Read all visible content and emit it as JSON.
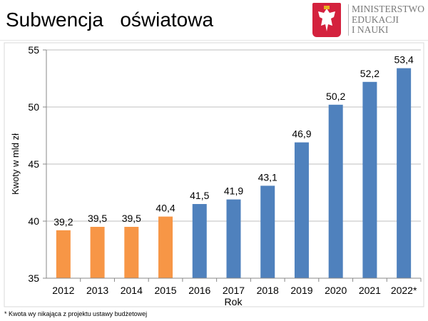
{
  "header": {
    "title": "Subwencja   oświatowa",
    "logo_lines": [
      "MINISTERSTWO",
      "EDUKACJI",
      "I NAUKI"
    ]
  },
  "footnote": "* Kwota wy nikająca z projektu ustawy  budżetowej",
  "colors": {
    "past": "#f79646",
    "current": "#4f81bd"
  },
  "chart_data": {
    "type": "bar",
    "title": "",
    "xlabel": "Rok",
    "ylabel": "Kwoty w mld zł",
    "ylim": [
      35,
      55
    ],
    "yticks": [
      35,
      40,
      45,
      50,
      55
    ],
    "grid": true,
    "categories": [
      "2012",
      "2013",
      "2014",
      "2015",
      "2016",
      "2017",
      "2018",
      "2019",
      "2020",
      "2021",
      "2022*"
    ],
    "values": [
      39.2,
      39.5,
      39.5,
      40.4,
      41.5,
      41.9,
      43.1,
      46.9,
      50.2,
      52.2,
      53.4
    ],
    "labels": [
      "39,2",
      "39,5",
      "39,5",
      "40,4",
      "41,5",
      "41,9",
      "43,1",
      "46,9",
      "50,2",
      "52,2",
      "53,4"
    ],
    "bar_colors": [
      "past",
      "past",
      "past",
      "past",
      "current",
      "current",
      "current",
      "current",
      "current",
      "current",
      "current"
    ]
  }
}
